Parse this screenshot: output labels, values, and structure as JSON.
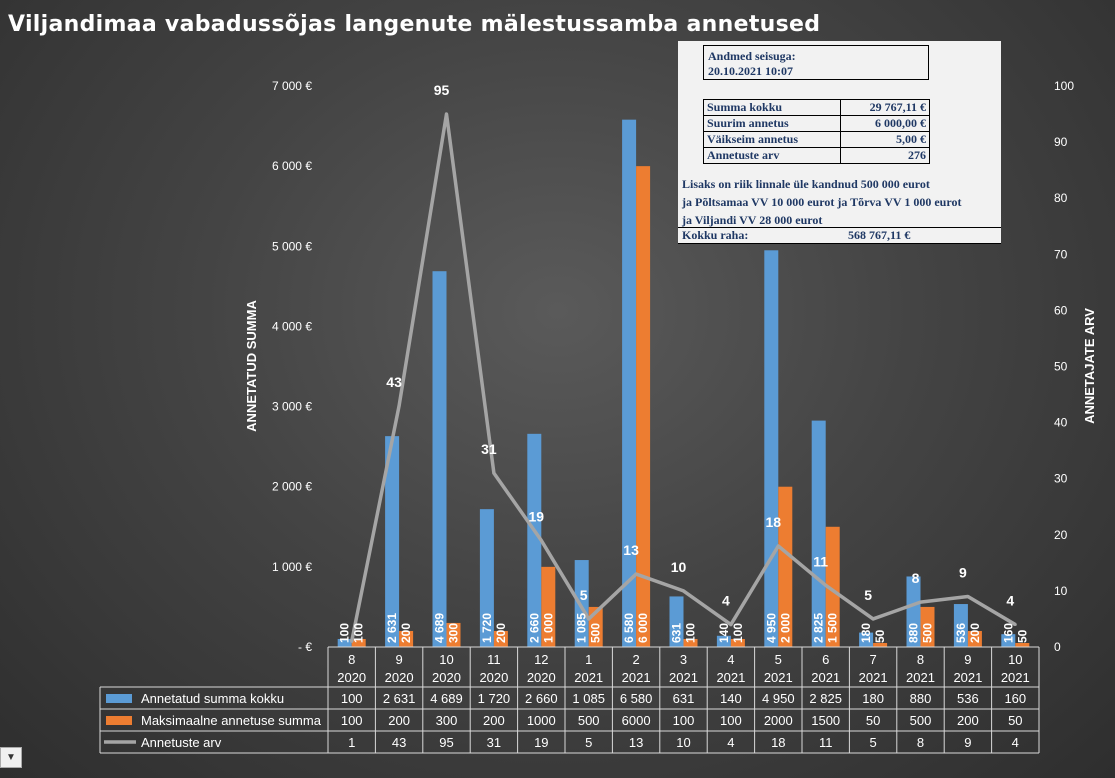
{
  "chart_data": {
    "type": "bar",
    "title": "Viljandimaa vabadussõjas langenute mälestussamba annetused",
    "ylabel": "ANNETATUD SUMMA",
    "y2label": "ANNETAJATE ARV",
    "ylim": [
      0,
      7000
    ],
    "y2lim": [
      0,
      100
    ],
    "y_ticks": [
      "-  €",
      "1 000 €",
      "2 000 €",
      "3 000 €",
      "4 000 €",
      "5 000 €",
      "6 000 €",
      "7 000 €"
    ],
    "y2_ticks": [
      "0",
      "10",
      "20",
      "30",
      "40",
      "50",
      "60",
      "70",
      "80",
      "90",
      "100"
    ],
    "categories": [
      [
        "8",
        "2020"
      ],
      [
        "9",
        "2020"
      ],
      [
        "10",
        "2020"
      ],
      [
        "11",
        "2020"
      ],
      [
        "12",
        "2020"
      ],
      [
        "1",
        "2021"
      ],
      [
        "2",
        "2021"
      ],
      [
        "3",
        "2021"
      ],
      [
        "4",
        "2021"
      ],
      [
        "5",
        "2021"
      ],
      [
        "6",
        "2021"
      ],
      [
        "7",
        "2021"
      ],
      [
        "8",
        "2021"
      ],
      [
        "9",
        "2021"
      ],
      [
        "10",
        "2021"
      ]
    ],
    "series": [
      {
        "name": "Annetatud summa kokku",
        "type": "bar",
        "axis": "left",
        "color": "#5b9bd5",
        "values": [
          100,
          2631,
          4689,
          1720,
          2660,
          1085,
          6580,
          631,
          140,
          4950,
          2825,
          180,
          880,
          536,
          160
        ],
        "bar_labels": [
          "100",
          "2 631",
          "4 689",
          "1 720",
          "2 660",
          "1 085",
          "6 580",
          "631",
          "140",
          "4 950",
          "2 825",
          "180",
          "880",
          "536",
          "160"
        ],
        "table_labels": [
          "100",
          "2 631",
          "4 689",
          "1 720",
          "2 660",
          "1 085",
          "6 580",
          "631",
          "140",
          "4 950",
          "2 825",
          "180",
          "880",
          "536",
          "160"
        ]
      },
      {
        "name": "Maksimaalne annetuse summa",
        "type": "bar",
        "axis": "left",
        "color": "#ed7d31",
        "values": [
          100,
          200,
          300,
          200,
          1000,
          500,
          6000,
          100,
          100,
          2000,
          1500,
          50,
          500,
          200,
          50
        ],
        "bar_labels": [
          "100",
          "200",
          "300",
          "200",
          "1 000",
          "500",
          "6 000",
          "100",
          "100",
          "2 000",
          "1 500",
          "50",
          "500",
          "200",
          "50"
        ],
        "table_labels": [
          "100",
          "200",
          "300",
          "200",
          "1000",
          "500",
          "6000",
          "100",
          "100",
          "2000",
          "1500",
          "50",
          "500",
          "200",
          "50"
        ]
      },
      {
        "name": "Annetuste arv",
        "type": "line",
        "axis": "right",
        "color": "#a5a5a5",
        "values": [
          1,
          43,
          95,
          31,
          19,
          5,
          13,
          10,
          4,
          18,
          11,
          5,
          8,
          9,
          4
        ],
        "point_labels": [
          "",
          "43",
          "95",
          "31",
          "19",
          "5",
          "13",
          "10",
          "4",
          "18",
          "11",
          "5",
          "8",
          "9",
          "4"
        ],
        "table_labels": [
          "1",
          "43",
          "95",
          "31",
          "19",
          "5",
          "13",
          "10",
          "4",
          "18",
          "11",
          "5",
          "8",
          "9",
          "4"
        ]
      }
    ],
    "legend_placement": "data-table"
  },
  "info_box": {
    "date_label": "Andmed seisuga:",
    "date_value": "20.10.2021 10:07",
    "rows": [
      {
        "label": "Summa kokku",
        "value": "29 767,11 €"
      },
      {
        "label": "Suurim annetus",
        "value": "6 000,00 €"
      },
      {
        "label": "Väikseim annetus",
        "value": "5,00 €"
      },
      {
        "label": "Annetuste arv",
        "value": "276"
      }
    ],
    "note_lines": [
      "Lisaks on riik linnale üle kandnud 500 000 eurot",
      "ja Põltsamaa VV 10 000 eurot ja Tõrva VV 1 000 eurot",
      "ja Viljandi VV 28 000 eurot"
    ],
    "total_label": "Kokku raha:",
    "total_value": "568 767,11 €"
  },
  "dropdown": {
    "icon": "chevron-down-icon",
    "glyph": "▼"
  }
}
